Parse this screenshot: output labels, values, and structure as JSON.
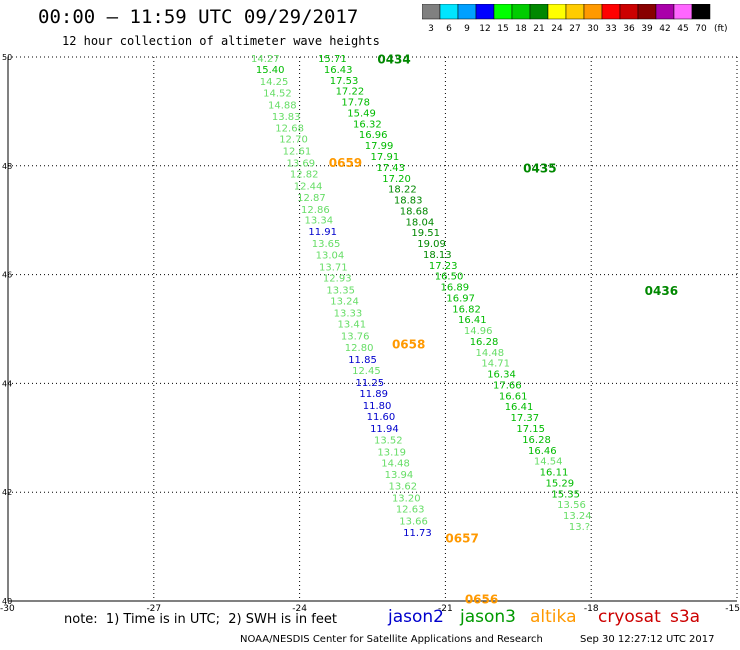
{
  "header": {
    "title": "00:00 – 11:59 UTC 09/29/2017",
    "subtitle": "12 hour collection of altimeter wave heights"
  },
  "color_scale": {
    "labels": [
      "3",
      "6",
      "9",
      "12",
      "15",
      "18",
      "21",
      "24",
      "27",
      "30",
      "33",
      "36",
      "39",
      "42",
      "45",
      "70"
    ],
    "unit": "(ft)",
    "colors": [
      "#808080",
      "#00e5ff",
      "#00a0ff",
      "#0000ff",
      "#00ff00",
      "#00cc00",
      "#008800",
      "#ffff00",
      "#ffcc00",
      "#ff9900",
      "#ff0000",
      "#cc0000",
      "#880000",
      "#aa00aa",
      "#ff66ff",
      "#000000"
    ]
  },
  "footer": {
    "note": "note:  1) Time is in UTC;  2) SWH is in feet",
    "satellites": [
      {
        "name": "jason2",
        "color": "#0000cc"
      },
      {
        "name": "jason3",
        "color": "#009900"
      },
      {
        "name": "altika",
        "color": "#ff9900"
      },
      {
        "name": "cryosat",
        "color": "#cc0000"
      },
      {
        "name": "s3a",
        "color": "#cc0000"
      }
    ],
    "credit": "NOAA/NESDIS Center for Satellite Applications and Research",
    "timestamp": "Sep 30 12:27:12 UTC 2017"
  },
  "chart_data": {
    "type": "scatter",
    "xlim": [
      -30,
      -15
    ],
    "ylim": [
      40,
      50
    ],
    "x_ticks": [
      "-30",
      "-27",
      "-24",
      "-21",
      "-18",
      "-15"
    ],
    "y_ticks": [
      "50",
      "48",
      "46",
      "44",
      "42",
      "40"
    ],
    "grid": true,
    "tracks": [
      {
        "satellite": "altika",
        "time_labels": [
          {
            "text": "0659",
            "x": -23.4,
            "y": 48.07
          },
          {
            "text": "0658",
            "x": -22.1,
            "y": 44.73
          },
          {
            "text": "0657",
            "x": -21.0,
            "y": 41.17
          },
          {
            "text": "0656",
            "x": -20.6,
            "y": 40.05
          }
        ],
        "points": [
          {
            "x": -25.0,
            "y": 49.98,
            "v": "14.27",
            "c": "#66dd66"
          },
          {
            "x": -24.9,
            "y": 49.78,
            "v": "15.40",
            "c": "#00bb00"
          },
          {
            "x": -24.82,
            "y": 49.56,
            "v": "14.25",
            "c": "#66dd66"
          },
          {
            "x": -24.75,
            "y": 49.35,
            "v": "14.52",
            "c": "#66dd66"
          },
          {
            "x": -24.65,
            "y": 49.13,
            "v": "14.88",
            "c": "#66dd66"
          },
          {
            "x": -24.57,
            "y": 48.92,
            "v": "13.83",
            "c": "#66dd66"
          },
          {
            "x": -24.5,
            "y": 48.7,
            "v": "12.68",
            "c": "#66dd66"
          },
          {
            "x": -24.42,
            "y": 48.5,
            "v": "12.70",
            "c": "#66dd66"
          },
          {
            "x": -24.35,
            "y": 48.28,
            "v": "12.61",
            "c": "#66dd66"
          },
          {
            "x": -24.27,
            "y": 48.06,
            "v": "13.69",
            "c": "#66dd66"
          },
          {
            "x": -24.2,
            "y": 47.86,
            "v": "12.82",
            "c": "#66dd66"
          },
          {
            "x": -24.12,
            "y": 47.64,
            "v": "12.44",
            "c": "#66dd66"
          },
          {
            "x": -24.05,
            "y": 47.43,
            "v": "12.87",
            "c": "#66dd66"
          },
          {
            "x": -23.97,
            "y": 47.21,
            "v": "12.86",
            "c": "#66dd66"
          },
          {
            "x": -23.9,
            "y": 47.01,
            "v": "13.34",
            "c": "#66dd66"
          },
          {
            "x": -23.82,
            "y": 46.8,
            "v": "11.91",
            "c": "#0000cc"
          },
          {
            "x": -23.75,
            "y": 46.58,
            "v": "13.65",
            "c": "#66dd66"
          },
          {
            "x": -23.67,
            "y": 46.37,
            "v": "13.04",
            "c": "#66dd66"
          },
          {
            "x": -23.6,
            "y": 46.15,
            "v": "13.71",
            "c": "#66dd66"
          },
          {
            "x": -23.52,
            "y": 45.95,
            "v": "12.93",
            "c": "#66dd66"
          },
          {
            "x": -23.45,
            "y": 45.73,
            "v": "13.35",
            "c": "#66dd66"
          },
          {
            "x": -23.37,
            "y": 45.52,
            "v": "13.24",
            "c": "#66dd66"
          },
          {
            "x": -23.3,
            "y": 45.3,
            "v": "13.33",
            "c": "#66dd66"
          },
          {
            "x": -23.22,
            "y": 45.1,
            "v": "13.41",
            "c": "#66dd66"
          },
          {
            "x": -23.15,
            "y": 44.88,
            "v": "13.76",
            "c": "#66dd66"
          },
          {
            "x": -23.07,
            "y": 44.67,
            "v": "12.80",
            "c": "#66dd66"
          },
          {
            "x": -23.0,
            "y": 44.45,
            "v": "11.85",
            "c": "#0000cc"
          },
          {
            "x": -22.92,
            "y": 44.25,
            "v": "12.45",
            "c": "#66dd66"
          },
          {
            "x": -22.85,
            "y": 44.03,
            "v": "11.25",
            "c": "#0000cc"
          },
          {
            "x": -22.77,
            "y": 43.82,
            "v": "11.89",
            "c": "#0000cc"
          },
          {
            "x": -22.7,
            "y": 43.6,
            "v": "11.80",
            "c": "#0000cc"
          },
          {
            "x": -22.62,
            "y": 43.4,
            "v": "11.60",
            "c": "#0000cc"
          },
          {
            "x": -22.55,
            "y": 43.18,
            "v": "11.94",
            "c": "#0000cc"
          },
          {
            "x": -22.47,
            "y": 42.97,
            "v": "13.52",
            "c": "#66dd66"
          },
          {
            "x": -22.4,
            "y": 42.75,
            "v": "13.19",
            "c": "#66dd66"
          },
          {
            "x": -22.32,
            "y": 42.55,
            "v": "14.48",
            "c": "#66dd66"
          },
          {
            "x": -22.25,
            "y": 42.33,
            "v": "13.94",
            "c": "#66dd66"
          },
          {
            "x": -22.17,
            "y": 42.12,
            "v": "13.62",
            "c": "#66dd66"
          },
          {
            "x": -22.1,
            "y": 41.9,
            "v": "13.20",
            "c": "#66dd66"
          },
          {
            "x": -22.02,
            "y": 41.7,
            "v": "12.63",
            "c": "#66dd66"
          },
          {
            "x": -21.95,
            "y": 41.48,
            "v": "13.66",
            "c": "#66dd66"
          },
          {
            "x": -21.87,
            "y": 41.27,
            "v": "11.73",
            "c": "#0000cc"
          }
        ]
      },
      {
        "satellite": "jason3",
        "time_labels": [
          {
            "text": "0434",
            "x": -22.4,
            "y": 49.97
          },
          {
            "text": "0435",
            "x": -19.4,
            "y": 47.97
          },
          {
            "text": "0436",
            "x": -16.9,
            "y": 45.72
          }
        ],
        "points": [
          {
            "x": -23.62,
            "y": 49.98,
            "v": "15.71",
            "c": "#00bb00"
          },
          {
            "x": -23.5,
            "y": 49.78,
            "v": "16.43",
            "c": "#00bb00"
          },
          {
            "x": -23.38,
            "y": 49.58,
            "v": "17.53",
            "c": "#00bb00"
          },
          {
            "x": -23.26,
            "y": 49.38,
            "v": "17.22",
            "c": "#00bb00"
          },
          {
            "x": -23.14,
            "y": 49.18,
            "v": "17.78",
            "c": "#00bb00"
          },
          {
            "x": -23.02,
            "y": 48.98,
            "v": "15.49",
            "c": "#00bb00"
          },
          {
            "x": -22.9,
            "y": 48.78,
            "v": "16.32",
            "c": "#00bb00"
          },
          {
            "x": -22.78,
            "y": 48.58,
            "v": "16.96",
            "c": "#00bb00"
          },
          {
            "x": -22.66,
            "y": 48.38,
            "v": "17.99",
            "c": "#00bb00"
          },
          {
            "x": -22.54,
            "y": 48.18,
            "v": "17.91",
            "c": "#00bb00"
          },
          {
            "x": -22.42,
            "y": 47.98,
            "v": "17.43",
            "c": "#00bb00"
          },
          {
            "x": -22.3,
            "y": 47.78,
            "v": "17.20",
            "c": "#00bb00"
          },
          {
            "x": -22.18,
            "y": 47.58,
            "v": "18.22",
            "c": "#008800"
          },
          {
            "x": -22.06,
            "y": 47.38,
            "v": "18.83",
            "c": "#008800"
          },
          {
            "x": -21.94,
            "y": 47.18,
            "v": "18.68",
            "c": "#008800"
          },
          {
            "x": -21.82,
            "y": 46.98,
            "v": "18.04",
            "c": "#008800"
          },
          {
            "x": -21.7,
            "y": 46.78,
            "v": "19.51",
            "c": "#008800"
          },
          {
            "x": -21.58,
            "y": 46.58,
            "v": "19.09",
            "c": "#008800"
          },
          {
            "x": -21.46,
            "y": 46.38,
            "v": "18.13",
            "c": "#008800"
          },
          {
            "x": -21.34,
            "y": 46.18,
            "v": "17.23",
            "c": "#00bb00"
          },
          {
            "x": -21.22,
            "y": 45.98,
            "v": "16.50",
            "c": "#00bb00"
          },
          {
            "x": -21.1,
            "y": 45.78,
            "v": "16.89",
            "c": "#00bb00"
          },
          {
            "x": -20.98,
            "y": 45.58,
            "v": "16.97",
            "c": "#00bb00"
          },
          {
            "x": -20.86,
            "y": 45.38,
            "v": "16.82",
            "c": "#00bb00"
          },
          {
            "x": -20.74,
            "y": 45.18,
            "v": "16.41",
            "c": "#00bb00"
          },
          {
            "x": -20.62,
            "y": 44.98,
            "v": "14.96",
            "c": "#66dd66"
          },
          {
            "x": -20.5,
            "y": 44.78,
            "v": "16.28",
            "c": "#00bb00"
          },
          {
            "x": -20.38,
            "y": 44.58,
            "v": "14.48",
            "c": "#66dd66"
          },
          {
            "x": -20.26,
            "y": 44.38,
            "v": "14.71",
            "c": "#66dd66"
          },
          {
            "x": -20.14,
            "y": 44.18,
            "v": "16.34",
            "c": "#00bb00"
          },
          {
            "x": -20.02,
            "y": 43.98,
            "v": "17.66",
            "c": "#00bb00"
          },
          {
            "x": -19.9,
            "y": 43.78,
            "v": "16.61",
            "c": "#00bb00"
          },
          {
            "x": -19.78,
            "y": 43.58,
            "v": "16.41",
            "c": "#00bb00"
          },
          {
            "x": -19.66,
            "y": 43.38,
            "v": "17.37",
            "c": "#00bb00"
          },
          {
            "x": -19.54,
            "y": 43.18,
            "v": "17.15",
            "c": "#00bb00"
          },
          {
            "x": -19.42,
            "y": 42.98,
            "v": "16.28",
            "c": "#00bb00"
          },
          {
            "x": -19.3,
            "y": 42.78,
            "v": "16.46",
            "c": "#00bb00"
          },
          {
            "x": -19.18,
            "y": 42.58,
            "v": "14.54",
            "c": "#66dd66"
          },
          {
            "x": -19.06,
            "y": 42.38,
            "v": "16.11",
            "c": "#00bb00"
          },
          {
            "x": -18.94,
            "y": 42.18,
            "v": "15.29",
            "c": "#00bb00"
          },
          {
            "x": -18.82,
            "y": 41.98,
            "v": "15.35",
            "c": "#00bb00"
          },
          {
            "x": -18.7,
            "y": 41.78,
            "v": "13.56",
            "c": "#66dd66"
          },
          {
            "x": -18.58,
            "y": 41.58,
            "v": "13.24",
            "c": "#66dd66"
          },
          {
            "x": -18.46,
            "y": 41.38,
            "v": "13.?",
            "c": "#66dd66"
          }
        ]
      }
    ]
  }
}
